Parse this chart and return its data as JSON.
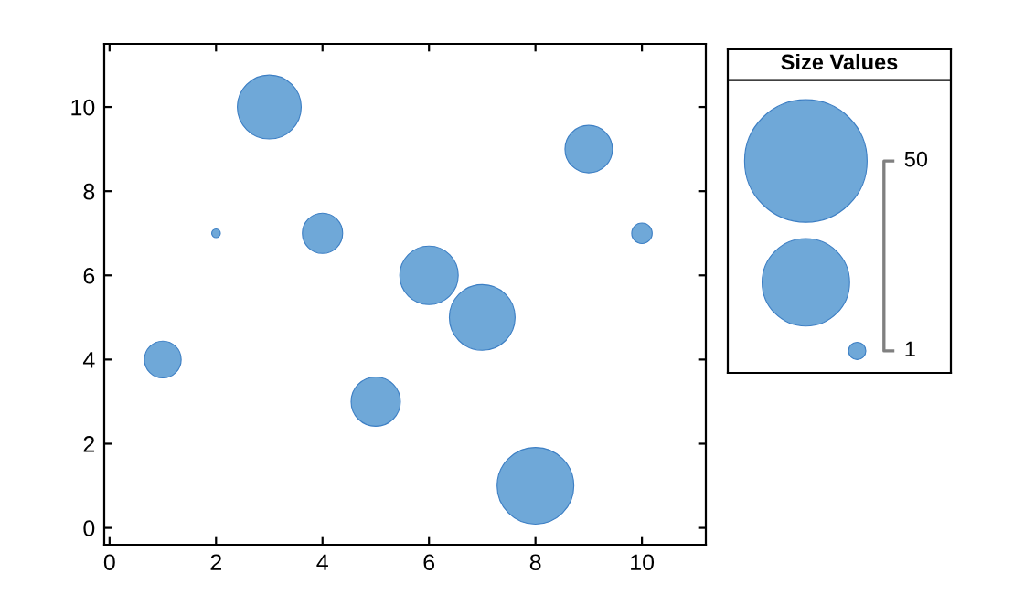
{
  "chart_data": {
    "type": "bubble",
    "legend_title": "Size Values",
    "x": [
      1,
      2,
      3,
      4,
      5,
      6,
      7,
      8,
      9,
      10
    ],
    "values": [
      4,
      7,
      10,
      7,
      3,
      6,
      5,
      1,
      9,
      7
    ],
    "sizes": [
      4.5,
      0.25,
      13.6,
      5.4,
      8.1,
      11.4,
      14.4,
      19.6,
      7.5,
      1.4
    ],
    "size_legend": [
      1,
      50
    ],
    "color": "#6fa8d8",
    "xlim": [
      -0.1,
      11.2
    ],
    "ylim": [
      -0.4,
      11.5
    ],
    "xticks": [
      0,
      2,
      4,
      6,
      8,
      10
    ],
    "yticks": [
      0,
      2,
      4,
      6,
      8,
      10
    ]
  }
}
